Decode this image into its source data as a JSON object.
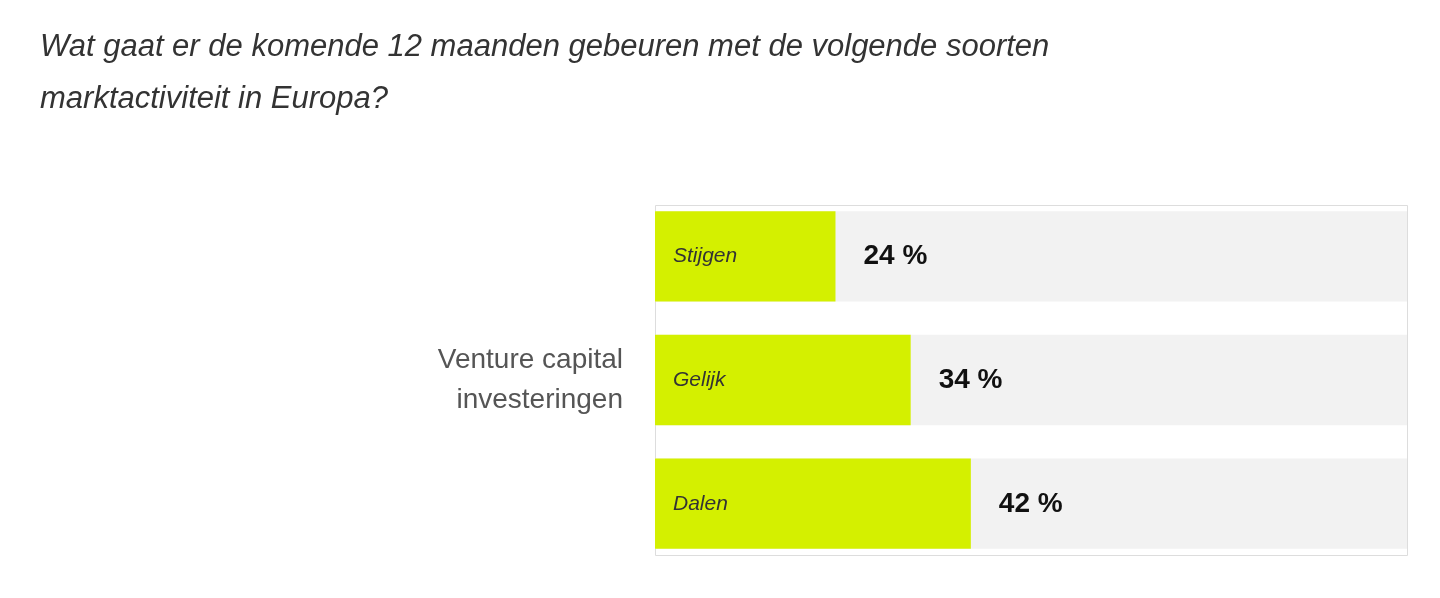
{
  "chart_data": {
    "type": "bar",
    "orientation": "horizontal",
    "title": "Wat gaat er de komende 12 maanden gebeuren met de volgende soorten\nmarktactiviteit in Europa?",
    "ylabel": "Venture capital investeringen",
    "categories": [
      "Stijgen",
      "Gelijk",
      "Dalen"
    ],
    "values": [
      24,
      34,
      42
    ],
    "value_labels": [
      "24 %",
      "34 %",
      "42 %"
    ],
    "color": "#d4f000",
    "xlim": [
      0,
      100
    ],
    "tick_labels": false,
    "grid": false
  }
}
